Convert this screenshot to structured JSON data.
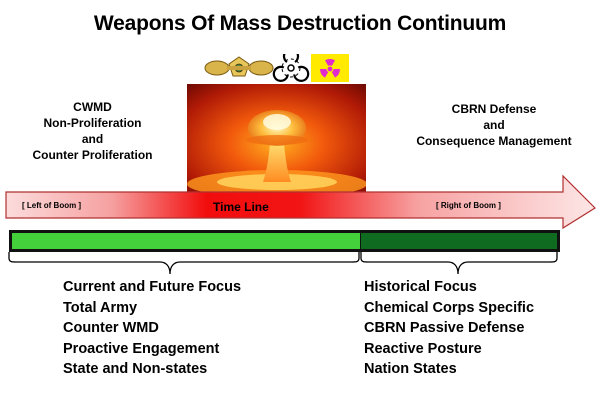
{
  "title": "Weapons Of Mass Destruction Continuum",
  "left_header": {
    "lines": [
      "CWMD",
      "Non-Proliferation",
      "and",
      "Counter Proliferation"
    ]
  },
  "right_header": {
    "lines": [
      "CBRN Defense",
      "and",
      "Consequence Management"
    ]
  },
  "icons": [
    "chemical-agent-icon",
    "biohazard-icon",
    "radiation-icon"
  ],
  "timeline": {
    "label": "Time Line",
    "left_boom": "[ Left of Boom ]",
    "right_boom": "[ Right of Boom ]"
  },
  "left_list": [
    "Current and Future Focus",
    "Total Army",
    "Counter WMD",
    "Proactive Engagement",
    "State and Non-states"
  ],
  "right_list": [
    "Historical Focus",
    "Chemical Corps Specific",
    "CBRN Passive Defense",
    "Reactive Posture",
    "Nation States"
  ],
  "colors": {
    "arrow_light": "#fbd0d0",
    "arrow_red": "#f20d0d",
    "bright_green": "#44d03b",
    "dark_green": "#0e6b1f",
    "radiation_bg": "#ffea00",
    "radiation_symbol": "#e02ad0"
  }
}
